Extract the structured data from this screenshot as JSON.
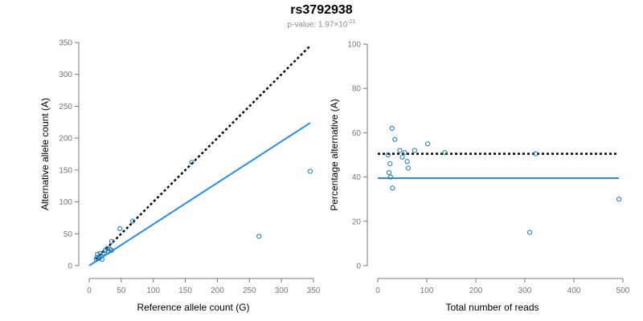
{
  "figure": {
    "title": "rs3792938",
    "pvalue_prefix": "p-value: 1.97×10",
    "pvalue_exponent": "-21",
    "point_color": "#1f78b4",
    "fit_color": "#2b8ce0",
    "ref_line_color": "#000000"
  },
  "chart_data": [
    {
      "type": "scatter",
      "title": "",
      "xlabel": "Reference allele count (G)",
      "ylabel": "Alternative allele count (A)",
      "xlim": [
        0,
        350
      ],
      "ylim": [
        0,
        350
      ],
      "xticks": [
        0,
        50,
        100,
        150,
        200,
        250,
        300,
        350
      ],
      "yticks": [
        0,
        50,
        100,
        150,
        200,
        250,
        300,
        350
      ],
      "points": [
        [
          11,
          10
        ],
        [
          12,
          13
        ],
        [
          13,
          18
        ],
        [
          14,
          11
        ],
        [
          16,
          12
        ],
        [
          17,
          19
        ],
        [
          18,
          15
        ],
        [
          20,
          10
        ],
        [
          22,
          20
        ],
        [
          25,
          24
        ],
        [
          28,
          27
        ],
        [
          30,
          22
        ],
        [
          32,
          26
        ],
        [
          35,
          24
        ],
        [
          35,
          38
        ],
        [
          48,
          58
        ],
        [
          68,
          70
        ],
        [
          160,
          162
        ],
        [
          265,
          46
        ],
        [
          345,
          148
        ]
      ],
      "lines": [
        {
          "name": "expected",
          "style": "dotted",
          "x": [
            10,
            345
          ],
          "y": [
            10,
            345
          ]
        },
        {
          "name": "fit",
          "style": "solid",
          "x": [
            0,
            345
          ],
          "y": [
            0,
            224
          ]
        }
      ]
    },
    {
      "type": "scatter",
      "title": "",
      "xlabel": "Total number of reads",
      "ylabel": "Percentage alternative (A)",
      "xlim": [
        0,
        500
      ],
      "ylim": [
        0,
        100
      ],
      "xticks": [
        0,
        100,
        200,
        300,
        400,
        500
      ],
      "yticks": [
        0,
        20,
        40,
        60,
        80,
        100
      ],
      "points": [
        [
          21,
          50
        ],
        [
          23,
          42
        ],
        [
          25,
          46
        ],
        [
          26,
          40
        ],
        [
          29,
          62
        ],
        [
          30,
          35
        ],
        [
          35,
          57
        ],
        [
          45,
          52
        ],
        [
          50,
          49
        ],
        [
          55,
          51
        ],
        [
          60,
          47
        ],
        [
          62,
          44
        ],
        [
          75,
          52
        ],
        [
          102,
          55
        ],
        [
          137,
          51
        ],
        [
          310,
          15
        ],
        [
          322,
          50.5
        ],
        [
          492,
          30
        ]
      ],
      "lines": [
        {
          "name": "expected",
          "style": "dotted",
          "x": [
            0,
            492
          ],
          "y": [
            50.5,
            50.5
          ]
        },
        {
          "name": "fit",
          "style": "solid",
          "x": [
            0,
            492
          ],
          "y": [
            39.5,
            39.5
          ]
        }
      ]
    }
  ]
}
